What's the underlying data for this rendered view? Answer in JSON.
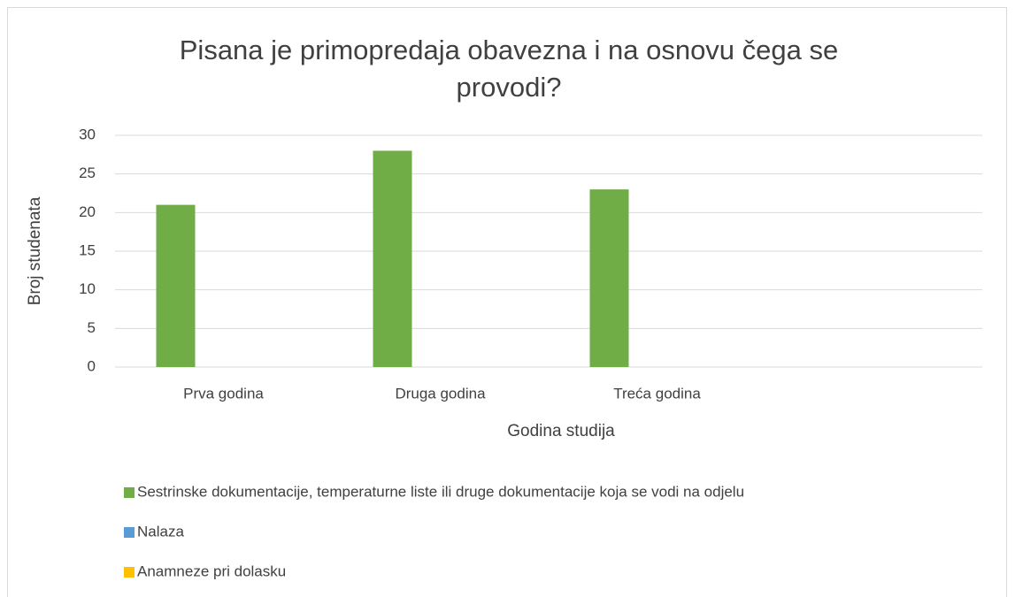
{
  "chart_data": {
    "type": "bar",
    "title": "Pisana je primopredaja obavezna i na osnovu čega se provodi?",
    "x_label": "Godina studija",
    "y_label": "Broj studenata",
    "categories": [
      "Prva godina",
      "Druga godina",
      "Treća godina",
      null
    ],
    "series": [
      {
        "name": "Sestrinske dokumentacije, temperaturne liste ili druge dokumentacije koja se vodi na odjelu",
        "color": "#70ad47",
        "values": [
          21,
          28,
          23,
          null
        ]
      },
      {
        "name": "Nalaza",
        "color": "#5b9bd5",
        "values": [
          0,
          0,
          0,
          null
        ]
      },
      {
        "name": "Anamneze pri dolasku",
        "color": "#ffc000",
        "values": [
          0,
          0,
          0,
          null
        ]
      }
    ],
    "ylim": [
      0,
      30
    ],
    "yticks": [
      0,
      5,
      10,
      15,
      20,
      25,
      30
    ],
    "grid": true,
    "legend": "bottom"
  }
}
